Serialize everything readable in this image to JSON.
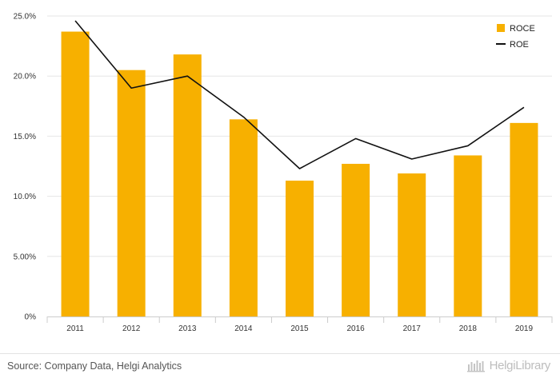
{
  "chart_data": {
    "type": "bar",
    "categories": [
      "2011",
      "2012",
      "2013",
      "2014",
      "2015",
      "2016",
      "2017",
      "2018",
      "2019"
    ],
    "series": [
      {
        "name": "ROCE",
        "kind": "bar",
        "color": "#f7b000",
        "values": [
          23.7,
          20.5,
          21.8,
          16.4,
          11.3,
          12.7,
          11.9,
          13.4,
          16.1
        ]
      },
      {
        "name": "ROE",
        "kind": "line",
        "color": "#111111",
        "values": [
          24.6,
          19.0,
          20.0,
          16.6,
          12.3,
          14.8,
          13.1,
          14.2,
          17.4
        ]
      }
    ],
    "ylim": [
      0,
      25
    ],
    "yticks": [
      0,
      5,
      10,
      15,
      20,
      25
    ],
    "ytick_labels": [
      "0%",
      "5.00%",
      "10.0%",
      "15.0%",
      "20.0%",
      "25.0%"
    ],
    "grid": true,
    "legend_position": "top-right",
    "title": "",
    "xlabel": "",
    "ylabel": ""
  },
  "footer": {
    "source": "Source: Company Data, Helgi Analytics",
    "brand": "HelgiLibrary"
  }
}
